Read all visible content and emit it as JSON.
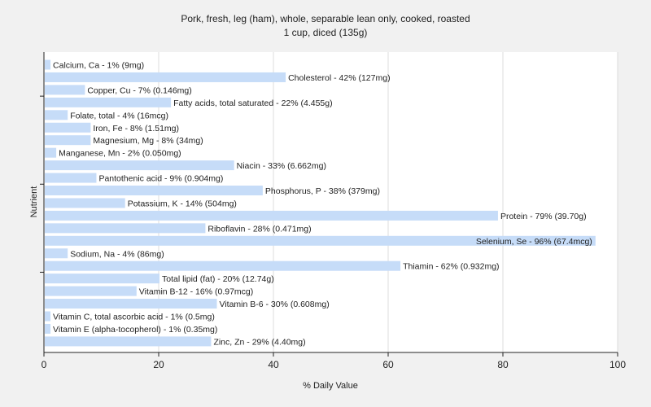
{
  "chart_data": {
    "type": "bar",
    "orientation": "horizontal",
    "title": "Pork, fresh, leg (ham), whole, separable lean only, cooked, roasted",
    "subtitle": "1 cup, diced (135g)",
    "xlabel": "% Daily Value",
    "ylabel": "Nutrient",
    "xlim": [
      0,
      100
    ],
    "xticks": [
      0,
      20,
      40,
      60,
      80,
      100
    ],
    "grid": true,
    "bar_color": "#c6dcf8",
    "categories": [
      "Calcium, Ca",
      "Cholesterol",
      "Copper, Cu",
      "Fatty acids, total saturated",
      "Folate, total",
      "Iron, Fe",
      "Magnesium, Mg",
      "Manganese, Mn",
      "Niacin",
      "Pantothenic acid",
      "Phosphorus, P",
      "Potassium, K",
      "Protein",
      "Riboflavin",
      "Selenium, Se",
      "Sodium, Na",
      "Thiamin",
      "Total lipid (fat)",
      "Vitamin B-12",
      "Vitamin B-6",
      "Vitamin C, total ascorbic acid",
      "Vitamin E (alpha-tocopherol)",
      "Zinc, Zn"
    ],
    "values": [
      1,
      42,
      7,
      22,
      4,
      8,
      8,
      2,
      33,
      9,
      38,
      14,
      79,
      28,
      96,
      4,
      62,
      20,
      16,
      30,
      1,
      1,
      29
    ],
    "labels": [
      "Calcium, Ca - 1% (9mg)",
      "Cholesterol - 42% (127mg)",
      "Copper, Cu - 7% (0.146mg)",
      "Fatty acids, total saturated - 22% (4.455g)",
      "Folate, total - 4% (16mcg)",
      "Iron, Fe - 8% (1.51mg)",
      "Magnesium, Mg - 8% (34mg)",
      "Manganese, Mn - 2% (0.050mg)",
      "Niacin - 33% (6.662mg)",
      "Pantothenic acid - 9% (0.904mg)",
      "Phosphorus, P - 38% (379mg)",
      "Potassium, K - 14% (504mg)",
      "Protein - 79% (39.70g)",
      "Riboflavin - 28% (0.471mg)",
      "Selenium, Se - 96% (67.4mcg)",
      "Sodium, Na - 4% (86mg)",
      "Thiamin - 62% (0.932mg)",
      "Total lipid (fat) - 20% (12.74g)",
      "Vitamin B-12 - 16% (0.97mcg)",
      "Vitamin B-6 - 30% (0.608mg)",
      "Vitamin C, total ascorbic acid - 1% (0.5mg)",
      "Vitamin E (alpha-tocopherol) - 1% (0.35mg)",
      "Zinc, Zn - 29% (4.40mg)"
    ]
  }
}
